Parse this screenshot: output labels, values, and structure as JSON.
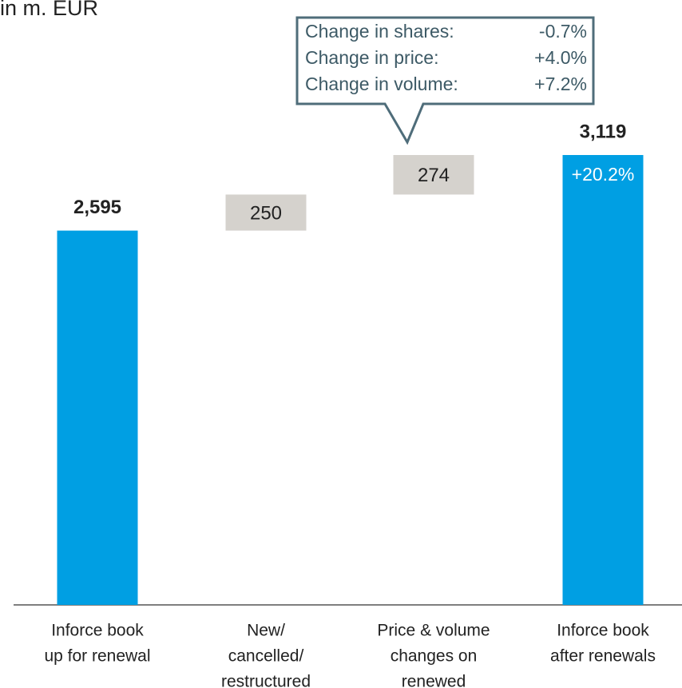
{
  "chart_data": {
    "type": "waterfall",
    "subtitle": "in m. EUR",
    "categories": [
      [
        "Inforce book",
        "up for renewal"
      ],
      [
        "New/",
        "cancelled/",
        "restructured"
      ],
      [
        "Price & volume",
        "changes on",
        "renewed"
      ],
      [
        "Inforce book",
        "after renewals"
      ]
    ],
    "values": [
      2595,
      250,
      274,
      3119
    ],
    "value_labels": [
      "2,595",
      "250",
      "274",
      "3,119"
    ],
    "totals": [
      true,
      false,
      false,
      true
    ],
    "total_color": "#009fe3",
    "step_color": "#d5d2cd",
    "bar_annotation": {
      "index": 3,
      "text": "+20.2%"
    },
    "callout": {
      "index": 2,
      "rows": [
        [
          "Change in shares:",
          "-0.7%"
        ],
        [
          "Change in price:",
          "+4.0%"
        ],
        [
          "Change in volume:",
          "+7.2%"
        ]
      ]
    }
  }
}
